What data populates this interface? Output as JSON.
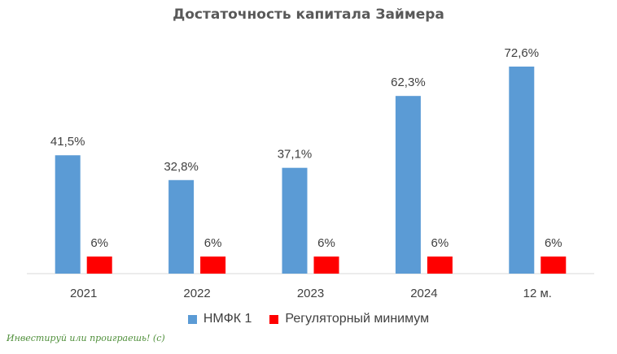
{
  "chart_data": {
    "type": "bar",
    "title": "Достаточность капитала Займера",
    "categories": [
      "2021",
      "2022",
      "2023",
      "2024",
      "12 м."
    ],
    "series": [
      {
        "name": "НМФК 1",
        "color": "#5b9bd5",
        "values": [
          41.5,
          32.8,
          37.1,
          62.3,
          72.6
        ],
        "labels": [
          "41,5%",
          "32,8%",
          "37,1%",
          "62,3%",
          "72,6%"
        ]
      },
      {
        "name": "Регуляторный минимум",
        "color": "#ff0000",
        "values": [
          6,
          6,
          6,
          6,
          6
        ],
        "labels": [
          "6%",
          "6%",
          "6%",
          "6%",
          "6%"
        ]
      }
    ],
    "ylim": [
      0,
      80
    ],
    "grid": false,
    "legend": "bottom"
  },
  "footer": {
    "note": "Инвестируй или проиграешь! (с)"
  }
}
